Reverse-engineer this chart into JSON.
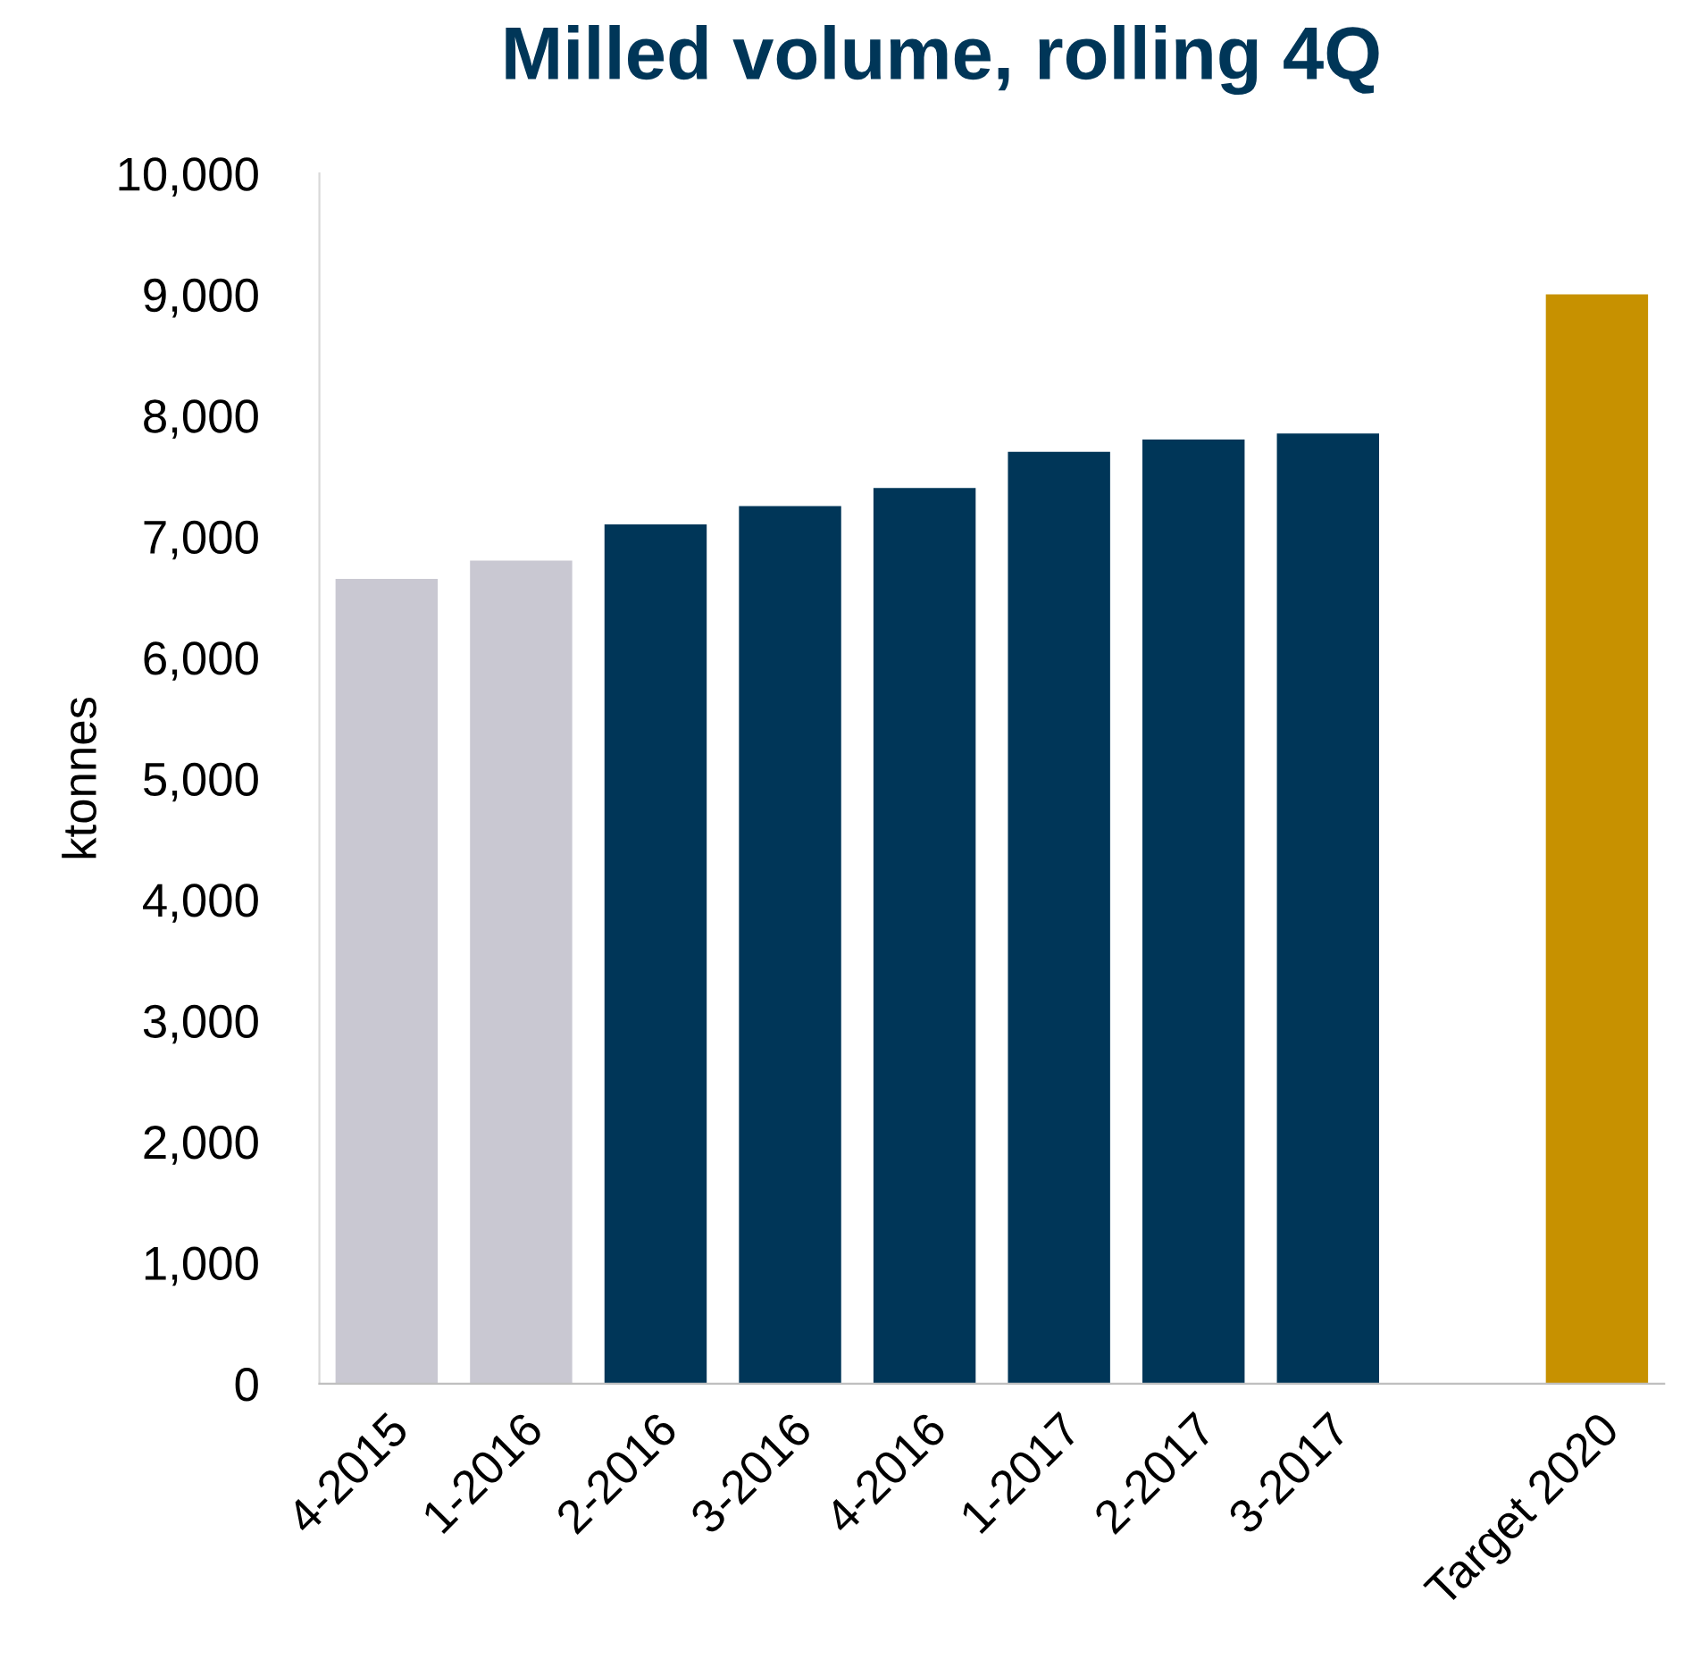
{
  "chart_data": {
    "type": "bar",
    "title": "Milled volume, rolling 4Q",
    "ylabel": "ktonnes",
    "categories": [
      "4-2015",
      "1-2016",
      "2-2016",
      "3-2016",
      "4-2016",
      "1-2017",
      "2-2017",
      "3-2017",
      null,
      "Target 2020"
    ],
    "values": [
      6650,
      6800,
      7100,
      7250,
      7400,
      7700,
      7800,
      7850,
      null,
      9000
    ],
    "colors": [
      "#c9c8d2",
      "#c9c8d2",
      "#003658",
      "#003658",
      "#003658",
      "#003658",
      "#003658",
      "#003658",
      "#003658",
      "#c79100"
    ],
    "ylim": [
      0,
      10000
    ],
    "yticks": [
      {
        "value": 0,
        "label": "0"
      },
      {
        "value": 1000,
        "label": "1,000"
      },
      {
        "value": 2000,
        "label": "2,000"
      },
      {
        "value": 3000,
        "label": "3,000"
      },
      {
        "value": 4000,
        "label": "4,000"
      },
      {
        "value": 5000,
        "label": "5,000"
      },
      {
        "value": 6000,
        "label": "6,000"
      },
      {
        "value": 7000,
        "label": "7,000"
      },
      {
        "value": 8000,
        "label": "8,000"
      },
      {
        "value": 9000,
        "label": "9,000"
      },
      {
        "value": 10000,
        "label": "10,000"
      }
    ],
    "grid": false
  }
}
